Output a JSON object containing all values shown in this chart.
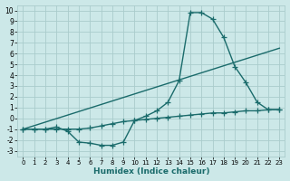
{
  "bg_color": "#cce8e8",
  "grid_color": "#aacccc",
  "line_color": "#1a6b6b",
  "xlabel": "Humidex (Indice chaleur)",
  "xlim": [
    -0.5,
    23.5
  ],
  "ylim": [
    -3.5,
    10.5
  ],
  "xticks": [
    0,
    1,
    2,
    3,
    4,
    5,
    6,
    7,
    8,
    9,
    10,
    11,
    12,
    13,
    14,
    15,
    16,
    17,
    18,
    19,
    20,
    21,
    22,
    23
  ],
  "yticks": [
    -3,
    -2,
    -1,
    0,
    1,
    2,
    3,
    4,
    5,
    6,
    7,
    8,
    9,
    10
  ],
  "line1_x": [
    0,
    1,
    2,
    3,
    4,
    5,
    6,
    7,
    8,
    9,
    10,
    11,
    12,
    13,
    14,
    15,
    16,
    17,
    18,
    19,
    20,
    21,
    22,
    23
  ],
  "line1_y": [
    -1,
    -1,
    -1,
    -0.8,
    -1.2,
    -2.2,
    -2.3,
    -2.5,
    -2.5,
    -2.2,
    -0.2,
    0.2,
    0.7,
    1.5,
    3.5,
    9.8,
    9.8,
    9.2,
    7.5,
    4.8,
    3.3,
    1.5,
    0.8,
    0.8
  ],
  "line2_x": [
    0,
    23
  ],
  "line2_y": [
    -1.0,
    6.5
  ],
  "line3_x": [
    0,
    1,
    2,
    3,
    4,
    5,
    6,
    7,
    8,
    9,
    10,
    11,
    12,
    13,
    14,
    15,
    16,
    17,
    18,
    19,
    20,
    21,
    22,
    23
  ],
  "line3_y": [
    -1,
    -1,
    -1,
    -1,
    -1,
    -1,
    -0.9,
    -0.7,
    -0.5,
    -0.3,
    -0.2,
    -0.1,
    0.0,
    0.1,
    0.2,
    0.3,
    0.4,
    0.5,
    0.5,
    0.6,
    0.7,
    0.7,
    0.8,
    0.8
  ],
  "marker": "+",
  "markersize": 4,
  "linewidth": 1.0,
  "tick_fontsize": 5.5,
  "xlabel_fontsize": 6.5
}
